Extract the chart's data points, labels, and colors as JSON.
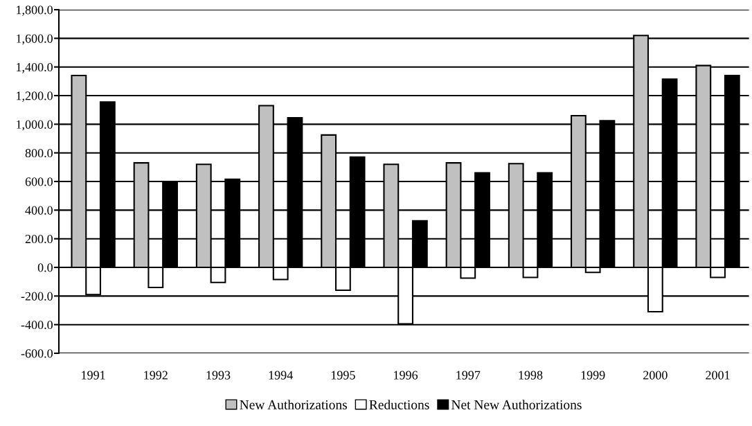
{
  "chart_data": {
    "type": "bar",
    "categories": [
      "1991",
      "1992",
      "1993",
      "1994",
      "1995",
      "1996",
      "1997",
      "1998",
      "1999",
      "2000",
      "2001"
    ],
    "series": [
      {
        "name": "New Authorizations",
        "color": "#c0c0c0",
        "values": [
          1340,
          730,
          720,
          1130,
          925,
          720,
          730,
          725,
          1060,
          1620,
          1410
        ]
      },
      {
        "name": "Reductions",
        "color": "#ffffff",
        "values": [
          -190,
          -140,
          -105,
          -85,
          -160,
          -395,
          -75,
          -70,
          -35,
          -310,
          -70
        ]
      },
      {
        "name": "Net New Authorizations",
        "color": "#000000",
        "values": [
          1155,
          595,
          615,
          1045,
          770,
          325,
          660,
          660,
          1025,
          1315,
          1340
        ]
      }
    ],
    "ylim": [
      -600,
      1800
    ],
    "yticks": [
      {
        "value": -600,
        "label": "-600.0"
      },
      {
        "value": -400,
        "label": "-400.0"
      },
      {
        "value": -200,
        "label": "-200.0"
      },
      {
        "value": 0,
        "label": "0.0"
      },
      {
        "value": 200,
        "label": "200.0"
      },
      {
        "value": 400,
        "label": "400.0"
      },
      {
        "value": 600,
        "label": "600.0"
      },
      {
        "value": 800,
        "label": "800.0"
      },
      {
        "value": 1000,
        "label": "1,000.0"
      },
      {
        "value": 1200,
        "label": "1,200.0"
      },
      {
        "value": 1400,
        "label": "1,400.0"
      },
      {
        "value": 1600,
        "label": "1,600.0"
      },
      {
        "value": 1800,
        "label": "1,800.0"
      }
    ],
    "grid": "y",
    "legend": "bottom"
  }
}
